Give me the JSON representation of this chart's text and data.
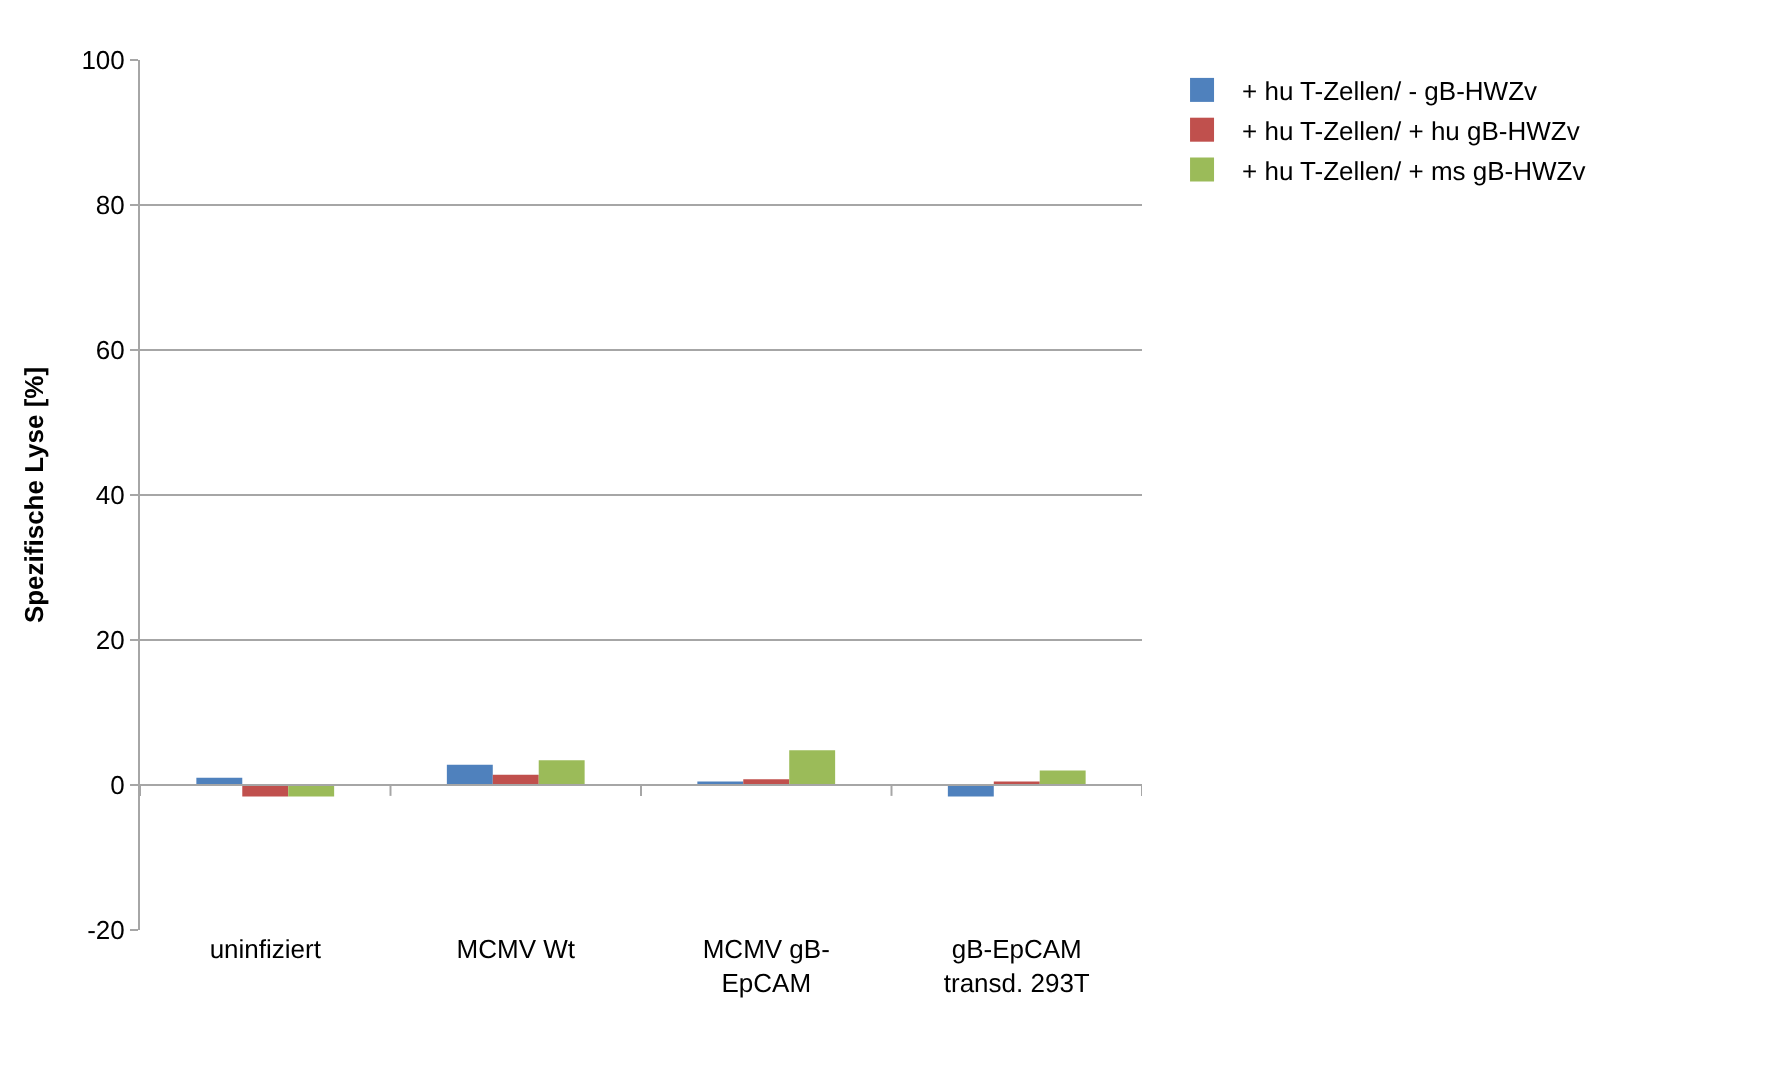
{
  "chart_data": {
    "type": "bar",
    "ylabel": "Spezifische Lyse [%]",
    "categories": [
      "uninfiziert",
      "MCMV Wt",
      "MCMV gB-\nEpCAM",
      "gB-EpCAM\ntransd. 293T"
    ],
    "series": [
      {
        "name": "+ hu T-Zellen/ - gB-HWZv",
        "color": "#4f81bd",
        "values": [
          1.0,
          2.8,
          0.5,
          -1.6
        ]
      },
      {
        "name": "+ hu T-Zellen/ + hu gB-HWZv",
        "color": "#c0504d",
        "values": [
          -1.6,
          1.4,
          0.8,
          0.5
        ]
      },
      {
        "name": "+ hu T-Zellen/ + ms gB-HWZv",
        "color": "#9bbb59",
        "values": [
          -1.6,
          3.4,
          4.8,
          2.0
        ]
      }
    ],
    "ylim": [
      -20,
      100
    ],
    "yticks": [
      -20,
      0,
      20,
      40,
      60,
      80,
      100
    ],
    "grid": "y",
    "legend": "top right"
  }
}
